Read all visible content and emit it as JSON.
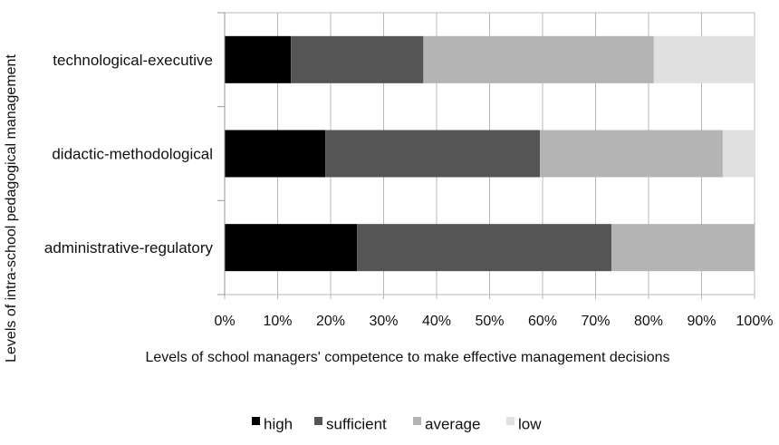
{
  "chart_data": {
    "type": "bar",
    "orientation": "horizontal",
    "stacked": "percent",
    "categories": [
      "technological-executive",
      "didactic-methodological",
      "administrative-regulatory"
    ],
    "series": [
      {
        "name": "high",
        "color": "#000000",
        "values": [
          12.5,
          19,
          25
        ]
      },
      {
        "name": "sufficient",
        "color": "#555555",
        "values": [
          25,
          40.5,
          48
        ]
      },
      {
        "name": "average",
        "color": "#b4b4b4",
        "values": [
          43.5,
          34.5,
          27
        ]
      },
      {
        "name": "low",
        "color": "#e0e0e0",
        "values": [
          19,
          6,
          0
        ]
      }
    ],
    "xlabel": "Levels of school managers' competence to make effective management decisions",
    "ylabel": "Levels of intra-school pedagogical management",
    "xlim": [
      0,
      100
    ],
    "xticks": [
      "0%",
      "10%",
      "20%",
      "30%",
      "40%",
      "50%",
      "60%",
      "70%",
      "80%",
      "90%",
      "100%"
    ],
    "grid": "vertical",
    "legend_position": "bottom"
  }
}
